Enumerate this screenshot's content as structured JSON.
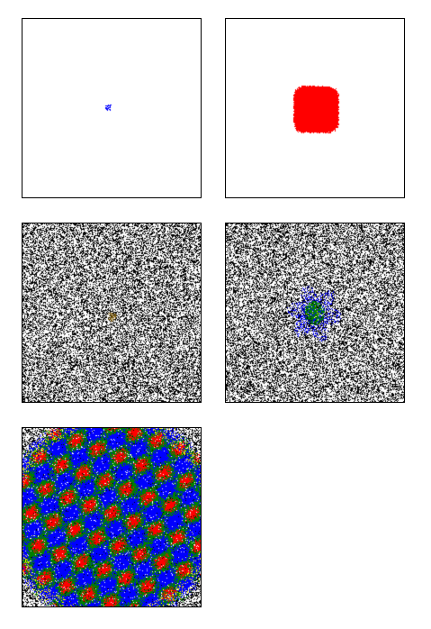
{
  "colors": {
    "background": "#ffffff",
    "frame": "#000000",
    "static_pixels": "#000000",
    "blue": "#0000ff",
    "red": "#ff0000",
    "green": "#008000",
    "brown": "#7a5a10",
    "yellow": "#ffff00"
  },
  "panels": [
    {
      "id": "panel-1",
      "description_color": "blue",
      "pattern": "small-cluster"
    },
    {
      "id": "panel-2",
      "description_color": "red",
      "pattern": "solid-rounded-square"
    },
    {
      "id": "panel-3",
      "description_color": "brown",
      "pattern": "noise-with-small-seed"
    },
    {
      "id": "panel-4",
      "description_color": "green-blue",
      "pattern": "noise-with-spreading-seed"
    },
    {
      "id": "panel-5",
      "description_color": "green-blue-red",
      "pattern": "noise-fully-covered"
    }
  ]
}
